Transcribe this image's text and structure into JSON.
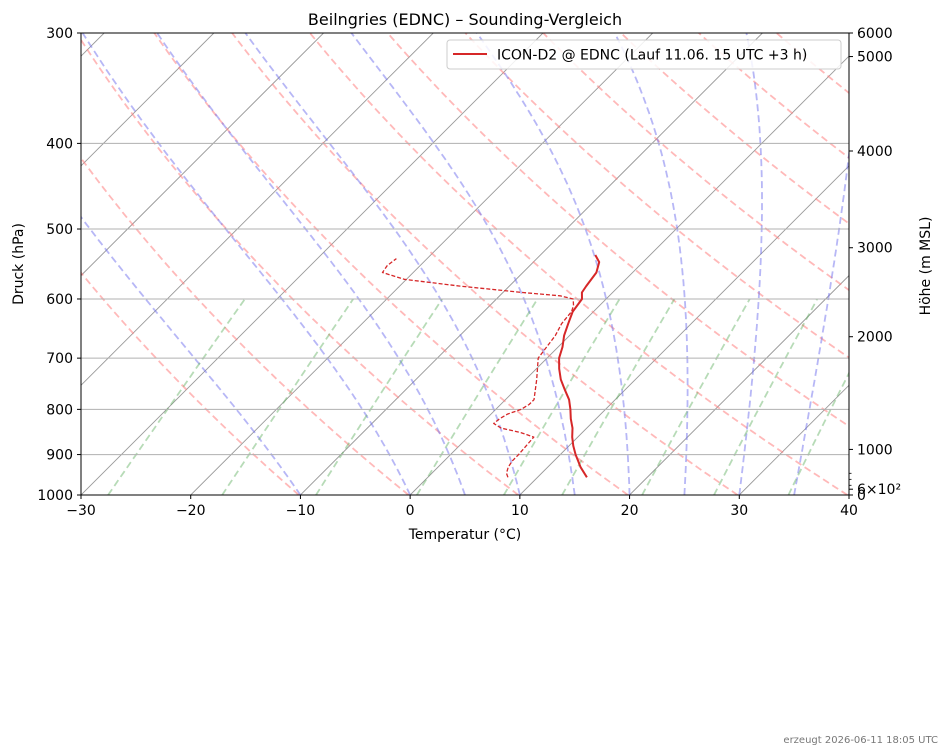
{
  "chart_data": {
    "type": "line",
    "chart_kind": "skew-t log-p sounding",
    "title": "Beilngries (EDNC) – Sounding-Vergleich",
    "xlabel": "Temperatur (°C)",
    "ylabel": "Druck (hPa)",
    "y2label": "Höhe (m MSL)",
    "xlim": [
      -30,
      40
    ],
    "ylim": [
      1000,
      300
    ],
    "y_scale": "log",
    "x_ticks": [
      -30,
      -20,
      -10,
      0,
      10,
      20,
      30,
      40
    ],
    "x_tick_labels": [
      "−30",
      "−20",
      "−10",
      "0",
      "10",
      "20",
      "30",
      "40"
    ],
    "y_ticks": [
      300,
      400,
      500,
      600,
      700,
      800,
      900,
      1000
    ],
    "y_tick_labels": [
      "300",
      "400",
      "500",
      "600",
      "700",
      "800",
      "900",
      "1000"
    ],
    "y2_ticks": [
      {
        "label": "6000",
        "pressure": 300
      },
      {
        "label": "5000",
        "pressure": 319
      },
      {
        "label": "4000",
        "pressure": 408
      },
      {
        "label": "3000",
        "pressure": 525
      },
      {
        "label": "2000",
        "pressure": 662
      },
      {
        "label": "1000",
        "pressure": 888
      },
      {
        "label": "6×10²",
        "pressure": 985
      },
      {
        "label": "0",
        "pressure": 1000
      }
    ],
    "grid": true,
    "legend_position": "top-right",
    "series": [
      {
        "name": "ICON-D2 @ EDNC (Lauf 11.06. 15 UTC +3 h)",
        "role": "temperature",
        "color": "#d62728",
        "p": [
          955,
          945,
          930,
          915,
          900,
          880,
          860,
          840,
          820,
          800,
          780,
          760,
          740,
          720,
          700,
          680,
          660,
          640,
          620,
          600,
          590,
          580,
          560,
          545,
          535
        ],
        "t": [
          14.5,
          13.9,
          13.0,
          12.2,
          11.4,
          10.4,
          9.5,
          8.7,
          7.7,
          6.8,
          5.8,
          4.5,
          3.2,
          2.1,
          1.1,
          0.4,
          -0.5,
          -1.2,
          -1.9,
          -2.2,
          -2.8,
          -3.0,
          -3.3,
          -4.0,
          -5.0
        ]
      },
      {
        "name": "",
        "role": "dewpoint",
        "color": "#d62728",
        "p": [
          955,
          945,
          930,
          915,
          900,
          880,
          860,
          850,
          840,
          830,
          820,
          810,
          800,
          790,
          780,
          740,
          700,
          660,
          640,
          620,
          610,
          600,
          595,
          590,
          580,
          570,
          560,
          550,
          540
        ],
        "t": [
          7.3,
          6.8,
          6.4,
          6.2,
          6.2,
          6.1,
          6.0,
          4.4,
          2.2,
          1.1,
          1.2,
          1.5,
          2.3,
          2.6,
          2.6,
          1.0,
          -0.8,
          -1.3,
          -1.8,
          -2.0,
          -2.4,
          -3.0,
          -4.5,
          -8.2,
          -14.6,
          -20.2,
          -22.8,
          -23.0,
          -22.8
        ]
      }
    ],
    "dry_adiabats_theta_K": [
      263,
      273,
      283,
      293,
      303,
      313,
      323,
      333,
      343,
      353,
      363,
      373,
      383
    ],
    "moist_adiabats_C": [
      -10,
      0,
      5,
      10,
      15,
      20,
      25,
      30,
      35,
      40
    ],
    "mixing_ratios_gkg": [
      0.4,
      1,
      2,
      4,
      7,
      10,
      16,
      24,
      36
    ]
  },
  "footer": {
    "generated": "erzeugt 2026-06-11 18:05 UTC"
  },
  "colors": {
    "temperature": "#d62728",
    "dry_adiabat": "#ff8080",
    "moist_adiabat": "#7070ee",
    "mixing_ratio": "#60b060",
    "isotherm": "#999999"
  }
}
